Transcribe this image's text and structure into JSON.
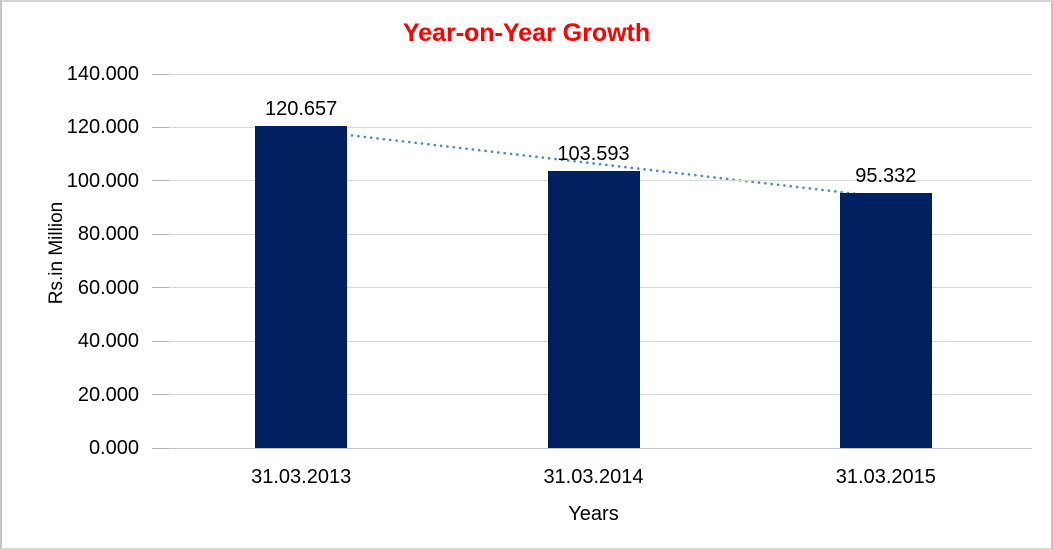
{
  "chart_data": {
    "type": "bar",
    "title": "Year-on-Year Growth",
    "title_color": "#ff0000",
    "categories": [
      "31.03.2013",
      "31.03.2014",
      "31.03.2015"
    ],
    "values": [
      120.657,
      103.593,
      95.332
    ],
    "data_labels": [
      "120.657",
      "103.593",
      "95.332"
    ],
    "xlabel": "Years",
    "ylabel": "Rs.in Million",
    "ylim": [
      0,
      140
    ],
    "ytick_values": [
      0,
      20,
      40,
      60,
      80,
      100,
      120,
      140
    ],
    "ytick_labels": [
      "0.000",
      "20.000",
      "40.000",
      "60.000",
      "80.000",
      "100.000",
      "120.000",
      "140.000"
    ],
    "grid": true,
    "legend": "none",
    "bar_color": "#002060",
    "gridline_color": "#d9d9d9",
    "trendline": {
      "type": "linear",
      "style": "dotted",
      "color": "#4a86c8",
      "fitted_values": [
        119.19,
        106.53,
        93.86
      ]
    }
  }
}
